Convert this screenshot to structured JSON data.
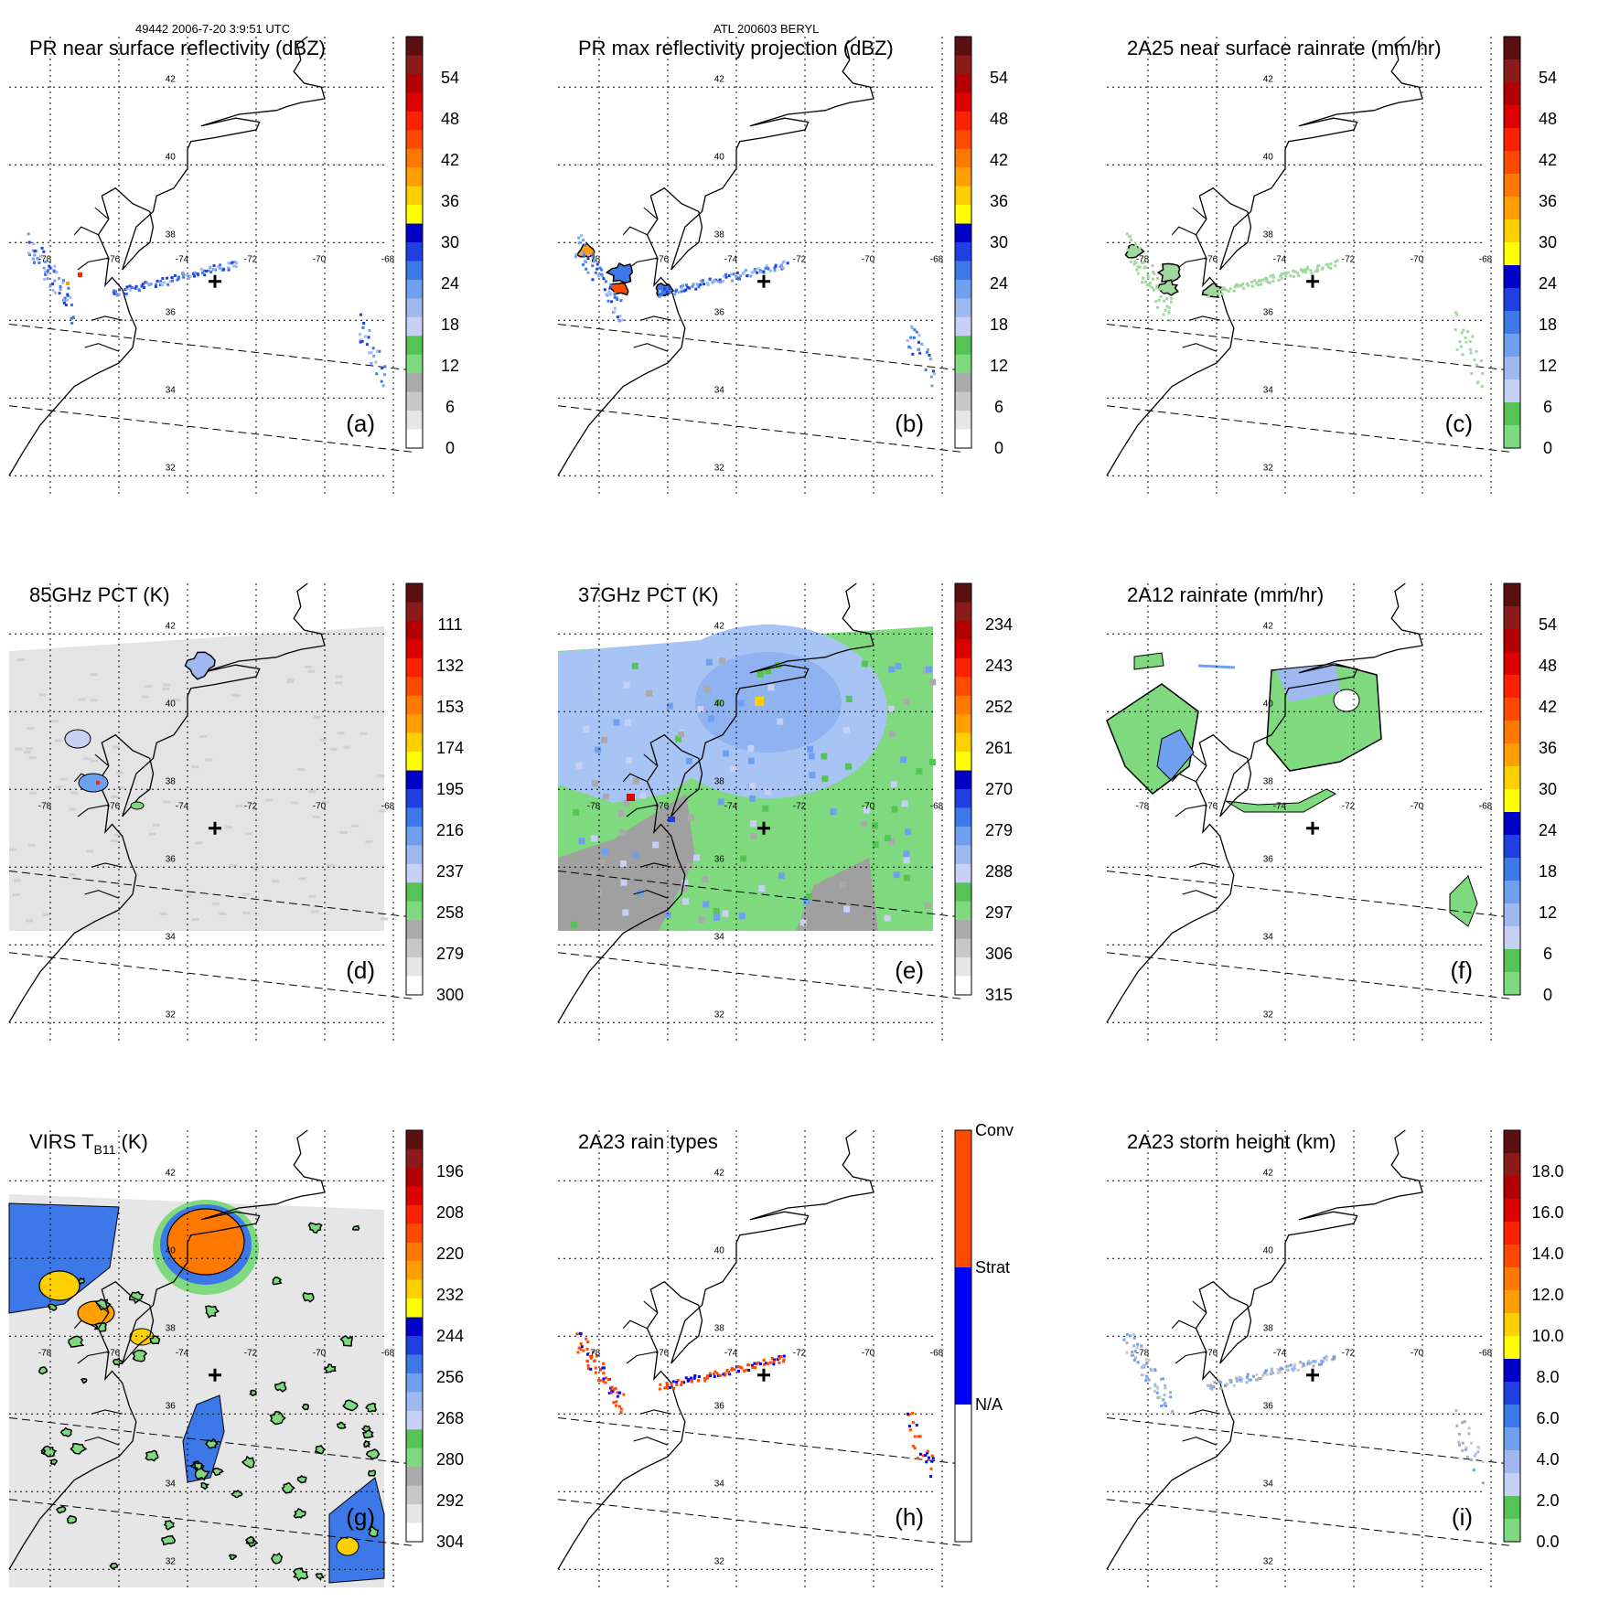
{
  "header": {
    "left": "49442 2006-7-20 3:9:51 UTC",
    "center": "ATL 200603 BERYL"
  },
  "map": {
    "lon_ticks": [
      "-78",
      "-76",
      "-74",
      "-72",
      "-70",
      "-68"
    ],
    "lat_ticks": [
      "42",
      "40",
      "38",
      "36",
      "34",
      "32"
    ]
  },
  "colors": {
    "dbz": [
      "#ffffff",
      "#e6e6e6",
      "#c8c8c8",
      "#aaaaaa",
      "#7fd97f",
      "#55c455",
      "#c8d0f5",
      "#a0b8f0",
      "#6fa0f0",
      "#3d78e8",
      "#1f3fe0",
      "#0000c8",
      "#ffff00",
      "#ffd000",
      "#ffa000",
      "#ff7800",
      "#ff4a00",
      "#ff2000",
      "#dc0000",
      "#b40000",
      "#8b1a1a",
      "#5a1010"
    ],
    "rain": [
      "#7fd97f",
      "#55c455",
      "#c8d0f5",
      "#a0b8f0",
      "#6fa0f0",
      "#3d78e8",
      "#1f3fe0",
      "#0000c8",
      "#ffff00",
      "#ffd000",
      "#ffa000",
      "#ff7800",
      "#ff4a00",
      "#ff2000",
      "#dc0000",
      "#b40000",
      "#8b1a1a",
      "#5a1010"
    ],
    "pct": [
      "#ffffff",
      "#e6e6e6",
      "#c8c8c8",
      "#aaaaaa",
      "#7fd97f",
      "#55c455",
      "#c8d0f5",
      "#a0b8f0",
      "#6fa0f0",
      "#3d78e8",
      "#1f3fe0",
      "#0000c8",
      "#ffff00",
      "#ffd000",
      "#ffa000",
      "#ff7800",
      "#ff4a00",
      "#ff2000",
      "#dc0000",
      "#b40000",
      "#8b1a1a",
      "#5a1010"
    ],
    "raintype": [
      "#ffffff",
      "#ffffff",
      "#0000ff",
      "#0000ff",
      "#ff4a00",
      "#ff4a00"
    ],
    "gray_bg": "#e2e2e2",
    "green_bg": "#7fd97f",
    "blue_bg": "#a8c4f4",
    "orange": "#ff7800"
  },
  "panels": [
    {
      "title": "PR near surface reflectivity (dBZ)",
      "letter": "(a)",
      "scale": "dbz",
      "colorbar_labels": [
        "54",
        "48",
        "42",
        "36",
        "30",
        "24",
        "18",
        "12",
        "6",
        "0"
      ],
      "kind": "pr"
    },
    {
      "title": "PR max reflectivity projection (dBZ)",
      "letter": "(b)",
      "scale": "dbz",
      "colorbar_labels": [
        "54",
        "48",
        "42",
        "36",
        "30",
        "24",
        "18",
        "12",
        "6",
        "0"
      ],
      "kind": "prmax"
    },
    {
      "title": "2A25 near surface rainrate (mm/hr)",
      "letter": "(c)",
      "scale": "rain",
      "colorbar_labels": [
        "54",
        "48",
        "42",
        "36",
        "30",
        "24",
        "18",
        "12",
        "6",
        "0"
      ],
      "kind": "rain25"
    },
    {
      "title": "85GHz PCT (K)",
      "letter": "(d)",
      "scale": "pct",
      "colorbar_labels": [
        "111",
        "132",
        "153",
        "174",
        "195",
        "216",
        "237",
        "258",
        "279",
        "300"
      ],
      "kind": "pct85"
    },
    {
      "title": "37GHz PCT (K)",
      "letter": "(e)",
      "scale": "pct",
      "colorbar_labels": [
        "234",
        "243",
        "252",
        "261",
        "270",
        "279",
        "288",
        "297",
        "306",
        "315"
      ],
      "kind": "pct37"
    },
    {
      "title": "2A12 rainrate (mm/hr)",
      "letter": "(f)",
      "scale": "rain",
      "colorbar_labels": [
        "54",
        "48",
        "42",
        "36",
        "30",
        "24",
        "18",
        "12",
        "6",
        "0"
      ],
      "kind": "rain12"
    },
    {
      "title_main": "VIRS T",
      "title_sub": "B11",
      "title_tail": " (K)",
      "letter": "(g)",
      "scale": "pct",
      "colorbar_labels": [
        "196",
        "208",
        "220",
        "232",
        "244",
        "256",
        "268",
        "280",
        "292",
        "304"
      ],
      "kind": "virs"
    },
    {
      "title": "2A23 rain types",
      "letter": "(h)",
      "scale": "raintype",
      "colorbar_labels": [
        "Conv",
        "Strat",
        "N/A"
      ],
      "kind": "types"
    },
    {
      "title": "2A23 storm height (km)",
      "letter": "(i)",
      "scale": "rain",
      "colorbar_labels": [
        "18.0",
        "16.0",
        "14.0",
        "12.0",
        "10.0",
        "8.0",
        "6.0",
        "4.0",
        "2.0",
        "0.0"
      ],
      "kind": "height"
    }
  ]
}
